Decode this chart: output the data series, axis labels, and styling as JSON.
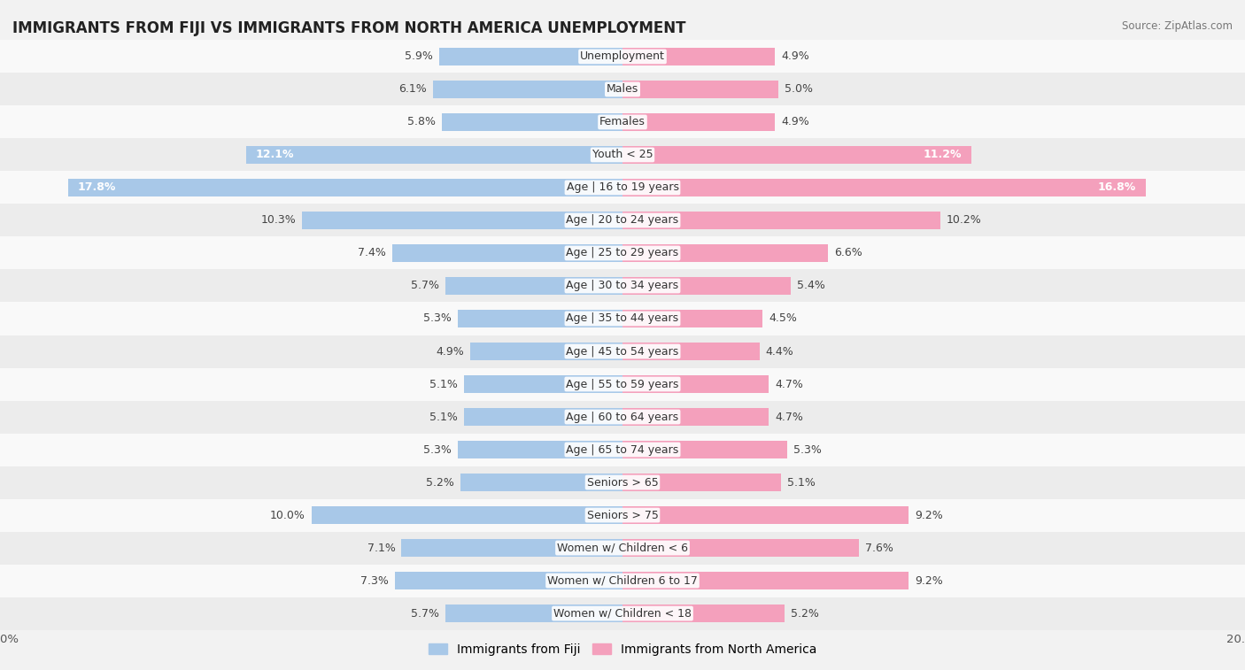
{
  "title": "IMMIGRANTS FROM FIJI VS IMMIGRANTS FROM NORTH AMERICA UNEMPLOYMENT",
  "source": "Source: ZipAtlas.com",
  "categories": [
    "Unemployment",
    "Males",
    "Females",
    "Youth < 25",
    "Age | 16 to 19 years",
    "Age | 20 to 24 years",
    "Age | 25 to 29 years",
    "Age | 30 to 34 years",
    "Age | 35 to 44 years",
    "Age | 45 to 54 years",
    "Age | 55 to 59 years",
    "Age | 60 to 64 years",
    "Age | 65 to 74 years",
    "Seniors > 65",
    "Seniors > 75",
    "Women w/ Children < 6",
    "Women w/ Children 6 to 17",
    "Women w/ Children < 18"
  ],
  "fiji_values": [
    5.9,
    6.1,
    5.8,
    12.1,
    17.8,
    10.3,
    7.4,
    5.7,
    5.3,
    4.9,
    5.1,
    5.1,
    5.3,
    5.2,
    10.0,
    7.1,
    7.3,
    5.7
  ],
  "north_america_values": [
    4.9,
    5.0,
    4.9,
    11.2,
    16.8,
    10.2,
    6.6,
    5.4,
    4.5,
    4.4,
    4.7,
    4.7,
    5.3,
    5.1,
    9.2,
    7.6,
    9.2,
    5.2
  ],
  "fiji_color": "#a8c8e8",
  "north_america_color": "#f4a0bc",
  "fiji_color_strong": "#5aa0d0",
  "north_america_color_strong": "#e05080",
  "bg_color": "#f2f2f2",
  "row_even_color": "#f9f9f9",
  "row_odd_color": "#ececec",
  "max_value": 20.0,
  "bar_height": 0.55,
  "legend_fiji": "Immigrants from Fiji",
  "legend_north_america": "Immigrants from North America",
  "label_fontsize": 9,
  "title_fontsize": 12,
  "cat_fontsize": 9
}
